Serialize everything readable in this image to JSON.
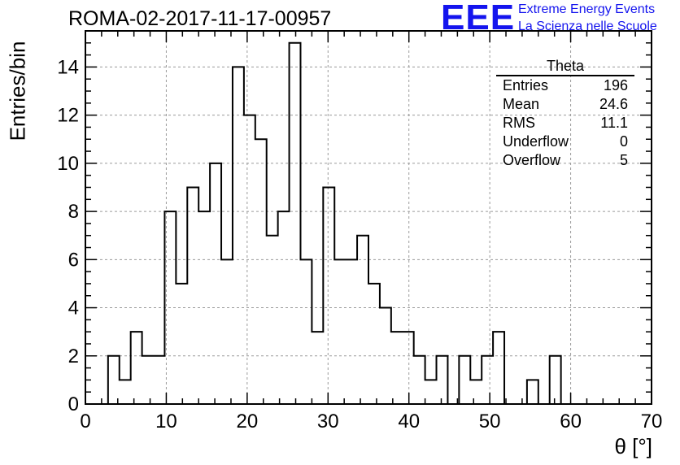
{
  "header": {
    "title": "ROMA-02-2017-11-17-00957",
    "logo_text": "EEE",
    "logo_line1": "Extreme Energy Events",
    "logo_line2": "La Scienza nelle Scuole"
  },
  "stats_box": {
    "title": "Theta",
    "rows": [
      {
        "label": "Entries",
        "value": "196"
      },
      {
        "label": "Mean",
        "value": "24.6"
      },
      {
        "label": "RMS",
        "value": "11.1"
      },
      {
        "label": "Underflow",
        "value": "0"
      },
      {
        "label": "Overflow",
        "value": "5"
      }
    ]
  },
  "chart_data": {
    "type": "bar",
    "title": "ROMA-02-2017-11-17-00957",
    "xlabel": "θ [°]",
    "ylabel": "Entries/bin",
    "xlim": [
      0,
      70
    ],
    "ylim": [
      0,
      15.5
    ],
    "bin_width": 1.4,
    "bin_start": 0,
    "x_ticks": [
      0,
      10,
      20,
      30,
      40,
      50,
      60,
      70
    ],
    "y_ticks": [
      0,
      2,
      4,
      6,
      8,
      10,
      12,
      14
    ],
    "grid": true,
    "values": [
      0,
      0,
      2,
      1,
      3,
      2,
      2,
      8,
      5,
      9,
      8,
      10,
      6,
      14,
      12,
      11,
      7,
      8,
      15,
      6,
      3,
      9,
      6,
      6,
      7,
      5,
      4,
      3,
      3,
      2,
      1,
      2,
      0,
      2,
      1,
      2,
      3,
      0,
      0,
      1,
      0,
      2,
      0,
      0,
      0,
      0,
      0,
      0,
      0,
      0
    ],
    "colors": {
      "line": "#000000",
      "grid": "#9a9a9a",
      "logo": "#1414ee"
    }
  }
}
